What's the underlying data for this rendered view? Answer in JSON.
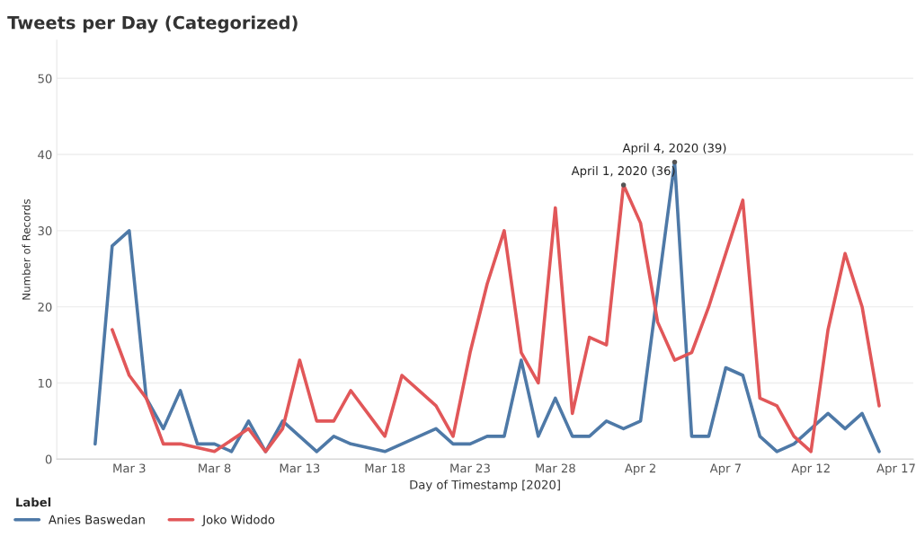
{
  "chart_data": {
    "type": "line",
    "title": "Tweets per Day (Categorized)",
    "xlabel": "Day of Timestamp [2020]",
    "ylabel": "Number of Records",
    "legend_title": "Label",
    "legend": "bottom",
    "grid": "y",
    "xlim": [
      "2020-02-27T18:00",
      "2020-04-18"
    ],
    "ylim": [
      0,
      55
    ],
    "xticks": [
      {
        "value": "2020-03-03",
        "label": "Mar 3"
      },
      {
        "value": "2020-03-08",
        "label": "Mar 8"
      },
      {
        "value": "2020-03-13",
        "label": "Mar 13"
      },
      {
        "value": "2020-03-18",
        "label": "Mar 18"
      },
      {
        "value": "2020-03-23",
        "label": "Mar 23"
      },
      {
        "value": "2020-03-28",
        "label": "Mar 28"
      },
      {
        "value": "2020-04-02",
        "label": "Apr 2"
      },
      {
        "value": "2020-04-07",
        "label": "Apr 7"
      },
      {
        "value": "2020-04-12",
        "label": "Apr 12"
      },
      {
        "value": "2020-04-17",
        "label": "Apr 17"
      }
    ],
    "yticks": [
      0,
      10,
      20,
      30,
      40,
      50
    ],
    "series": [
      {
        "name": "Anies Baswedan",
        "color": "#4e79a7",
        "x": [
          "2020-03-01",
          "2020-03-02",
          "2020-03-03",
          "2020-03-04",
          "2020-03-05",
          "2020-03-06",
          "2020-03-07",
          "2020-03-08",
          "2020-03-09",
          "2020-03-10",
          "2020-03-11",
          "2020-03-12",
          "2020-03-13",
          "2020-03-14",
          "2020-03-15",
          "2020-03-16",
          "2020-03-18",
          "2020-03-19",
          "2020-03-20",
          "2020-03-21",
          "2020-03-22",
          "2020-03-23",
          "2020-03-24",
          "2020-03-25",
          "2020-03-26",
          "2020-03-27",
          "2020-03-28",
          "2020-03-29",
          "2020-03-30",
          "2020-03-31",
          "2020-04-01",
          "2020-04-02",
          "2020-04-03",
          "2020-04-04",
          "2020-04-05",
          "2020-04-06",
          "2020-04-07",
          "2020-04-08",
          "2020-04-09",
          "2020-04-10",
          "2020-04-11",
          "2020-04-12",
          "2020-04-13",
          "2020-04-14",
          "2020-04-15",
          "2020-04-16"
        ],
        "values": [
          2,
          28,
          30,
          8,
          4,
          9,
          2,
          2,
          1,
          5,
          1,
          5,
          3,
          1,
          3,
          2,
          1,
          2,
          3,
          4,
          2,
          2,
          3,
          3,
          13,
          3,
          8,
          3,
          3,
          5,
          4,
          5,
          22,
          39,
          3,
          3,
          12,
          11,
          3,
          1,
          2,
          4,
          6,
          4,
          6,
          1
        ]
      },
      {
        "name": "Joko Widodo",
        "color": "#e15759",
        "x": [
          "2020-03-02",
          "2020-03-03",
          "2020-03-04",
          "2020-03-05",
          "2020-03-06",
          "2020-03-08",
          "2020-03-10",
          "2020-03-11",
          "2020-03-12",
          "2020-03-13",
          "2020-03-14",
          "2020-03-15",
          "2020-03-16",
          "2020-03-17",
          "2020-03-18",
          "2020-03-19",
          "2020-03-20",
          "2020-03-21",
          "2020-03-22",
          "2020-03-23",
          "2020-03-24",
          "2020-03-25",
          "2020-03-26",
          "2020-03-27",
          "2020-03-28",
          "2020-03-29",
          "2020-03-30",
          "2020-03-31",
          "2020-04-01",
          "2020-04-02",
          "2020-04-03",
          "2020-04-04",
          "2020-04-05",
          "2020-04-06",
          "2020-04-07",
          "2020-04-08",
          "2020-04-09",
          "2020-04-10",
          "2020-04-11",
          "2020-04-12",
          "2020-04-13",
          "2020-04-14",
          "2020-04-15",
          "2020-04-16"
        ],
        "values": [
          17,
          11,
          8,
          2,
          2,
          1,
          4,
          1,
          4,
          13,
          5,
          5,
          9,
          6,
          3,
          11,
          9,
          7,
          3,
          14,
          23,
          30,
          14,
          10,
          33,
          6,
          16,
          15,
          36,
          31,
          18,
          13,
          14,
          20,
          27,
          34,
          8,
          7,
          3,
          1,
          17,
          27,
          20,
          7
        ]
      }
    ],
    "annotations": [
      {
        "text": "April 1, 2020 (36)",
        "x": "2020-04-01",
        "y": 36
      },
      {
        "text": "April 4, 2020 (39)",
        "x": "2020-04-04",
        "y": 39
      }
    ]
  }
}
